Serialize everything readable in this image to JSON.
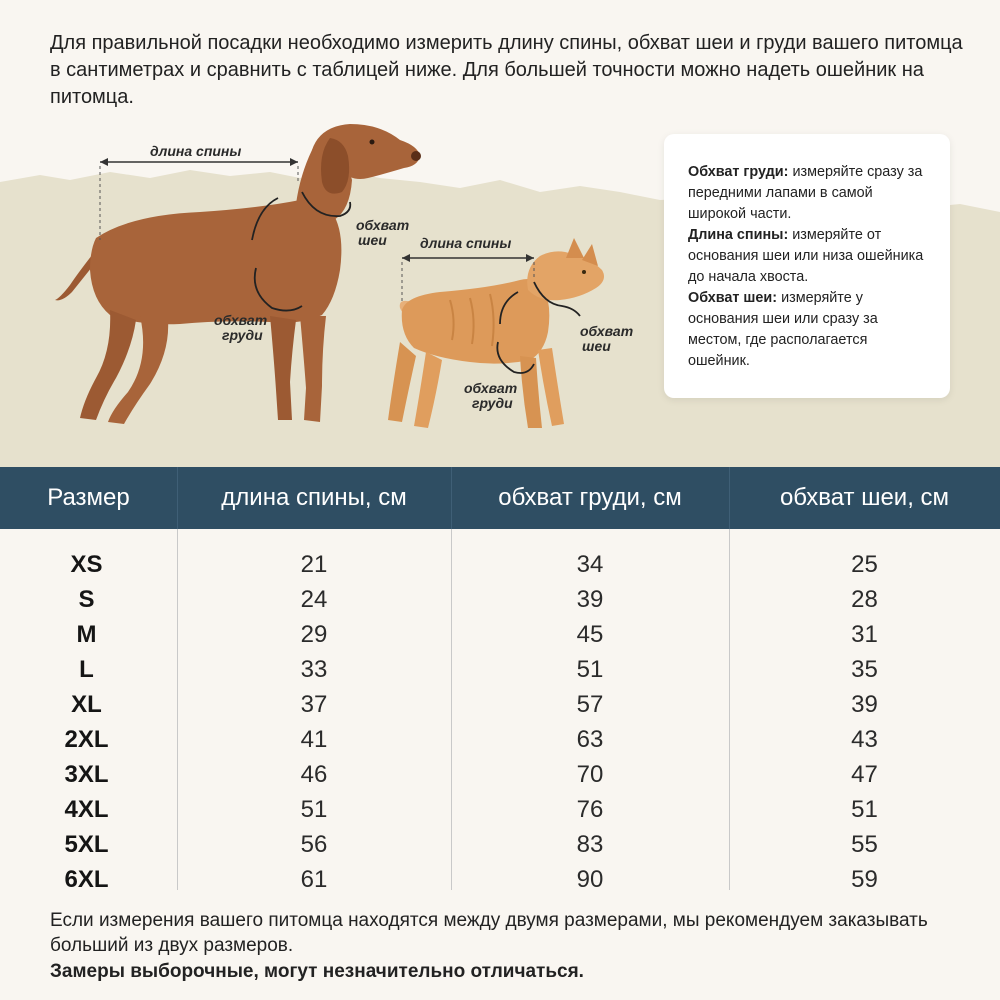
{
  "intro_text": "Для правильной посадки необходимо измерить длину спины, обхват шеи и груди вашего питомца в сантиметрах и сравнить с таблицей ниже. Для большей точности можно надеть ошейник на питомца.",
  "diagram": {
    "dog": {
      "back_length_label": "длина спины",
      "neck_label_line1": "обхват",
      "neck_label_line2": "шеи",
      "chest_label_line1": "обхват",
      "chest_label_line2": "груди"
    },
    "cat": {
      "back_length_label": "длина спины",
      "neck_label_line1": "обхват",
      "neck_label_line2": "шеи",
      "chest_label_line1": "обхват",
      "chest_label_line2": "груди"
    }
  },
  "info_card": {
    "chest_title": "Обхват груди:",
    "chest_text": " измеряйте сразу за передними лапами в самой широкой части.",
    "back_title": "Длина спины:",
    "back_text": " измеряйте от основания шеи или низа ошейника до начала хвоста.",
    "neck_title": "Обхват шеи:",
    "neck_text": " измеряйте у основания шеи или сразу за местом, где располагается ошейник."
  },
  "table": {
    "headers": [
      "Размер",
      "длина спины, см",
      "обхват груди, см",
      "обхват шеи, см"
    ],
    "rows": [
      {
        "size": "XS",
        "back": "21",
        "chest": "34",
        "neck": "25"
      },
      {
        "size": "S",
        "back": "24",
        "chest": "39",
        "neck": "28"
      },
      {
        "size": "M",
        "back": "29",
        "chest": "45",
        "neck": "31"
      },
      {
        "size": "L",
        "back": "33",
        "chest": "51",
        "neck": "35"
      },
      {
        "size": "XL",
        "back": "37",
        "chest": "57",
        "neck": "39"
      },
      {
        "size": "2XL",
        "back": "41",
        "chest": "63",
        "neck": "43"
      },
      {
        "size": "3XL",
        "back": "46",
        "chest": "70",
        "neck": "47"
      },
      {
        "size": "4XL",
        "back": "51",
        "chest": "76",
        "neck": "51"
      },
      {
        "size": "5XL",
        "back": "56",
        "chest": "83",
        "neck": "55"
      },
      {
        "size": "6XL",
        "back": "61",
        "chest": "90",
        "neck": "59"
      }
    ]
  },
  "footer": {
    "note": "Если измерения вашего питомца находятся между двумя размерами, мы рекомендуем заказывать больший из двух размеров.",
    "disclaimer": "Замеры выборочные, могут незначительно отличаться."
  },
  "colors": {
    "header_bg": "#2f4e63",
    "page_bg": "#f9f6f1",
    "scene_band": "#e6e1cd",
    "dog_fur": "#a8643a",
    "cat_fur": "#dd9a5a"
  }
}
